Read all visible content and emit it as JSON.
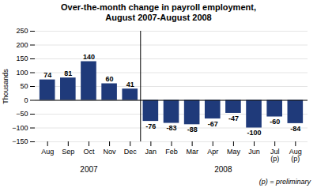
{
  "chart_data": {
    "type": "bar",
    "title": "Over-the-month change in payroll employment,",
    "subtitle": "August 2007-August 2008",
    "ylabel": "Thousands",
    "categories": [
      "Aug",
      "Sep",
      "Oct",
      "Nov",
      "Dec",
      "Jan",
      "Feb",
      "Mar",
      "Apr",
      "May",
      "Jun",
      "Jul\n(p)",
      "Aug\n(p)"
    ],
    "values": [
      74,
      81,
      140,
      60,
      41,
      -76,
      -83,
      -88,
      -67,
      -47,
      -100,
      -60,
      -84
    ],
    "color": "#1f3a7a",
    "ylim": [
      -150,
      250
    ],
    "yticks": [
      -150,
      -100,
      -50,
      0,
      50,
      100,
      150,
      200,
      250
    ],
    "grid": true,
    "data_labels": true,
    "x_groups": [
      {
        "label": "2007",
        "categories": [
          "Aug",
          "Sep",
          "Oct",
          "Nov",
          "Dec"
        ]
      },
      {
        "label": "2008",
        "categories": [
          "Jan",
          "Feb",
          "Mar",
          "Apr",
          "May",
          "Jun",
          "Jul\n(p)",
          "Aug\n(p)"
        ]
      }
    ],
    "footnote": "(p) = preliminary"
  }
}
